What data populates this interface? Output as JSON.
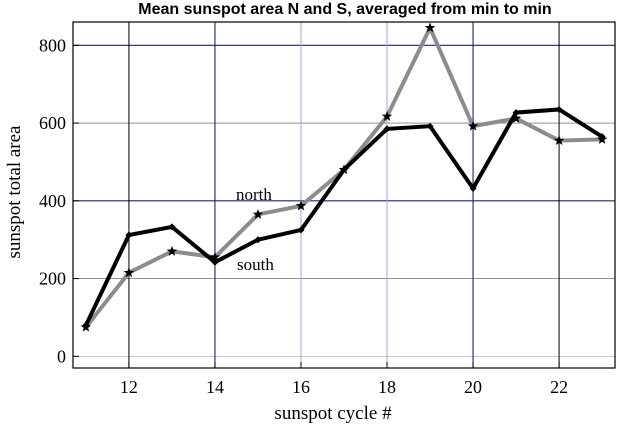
{
  "chart_data": {
    "type": "line",
    "title": "Mean sunspot area N and S, averaged from min to min",
    "xlabel": "sunspot cycle #",
    "ylabel": "sunspot total area",
    "xlim": [
      10.7,
      23.3
    ],
    "ylim": [
      -30,
      860
    ],
    "xticks": [
      12,
      14,
      16,
      18,
      20,
      22
    ],
    "yticks": [
      0,
      200,
      400,
      600,
      800
    ],
    "grid": true,
    "x": [
      11,
      12,
      13,
      14,
      15,
      16,
      17,
      18,
      19,
      20,
      21,
      22,
      23
    ],
    "series": [
      {
        "name": "north",
        "color": "#8c8c8c",
        "marker": "star",
        "values": [
          75,
          215,
          270,
          255,
          365,
          387,
          480,
          617,
          845,
          592,
          612,
          555,
          558
        ]
      },
      {
        "name": "south",
        "color": "#000000",
        "marker": "diamond",
        "values": [
          80,
          312,
          333,
          242,
          300,
          325,
          480,
          585,
          592,
          432,
          627,
          635,
          565
        ]
      }
    ],
    "colors": {
      "grid_major": "#1a237e",
      "grid_minor": "#9fa8da",
      "grid_black": "#000000"
    }
  }
}
